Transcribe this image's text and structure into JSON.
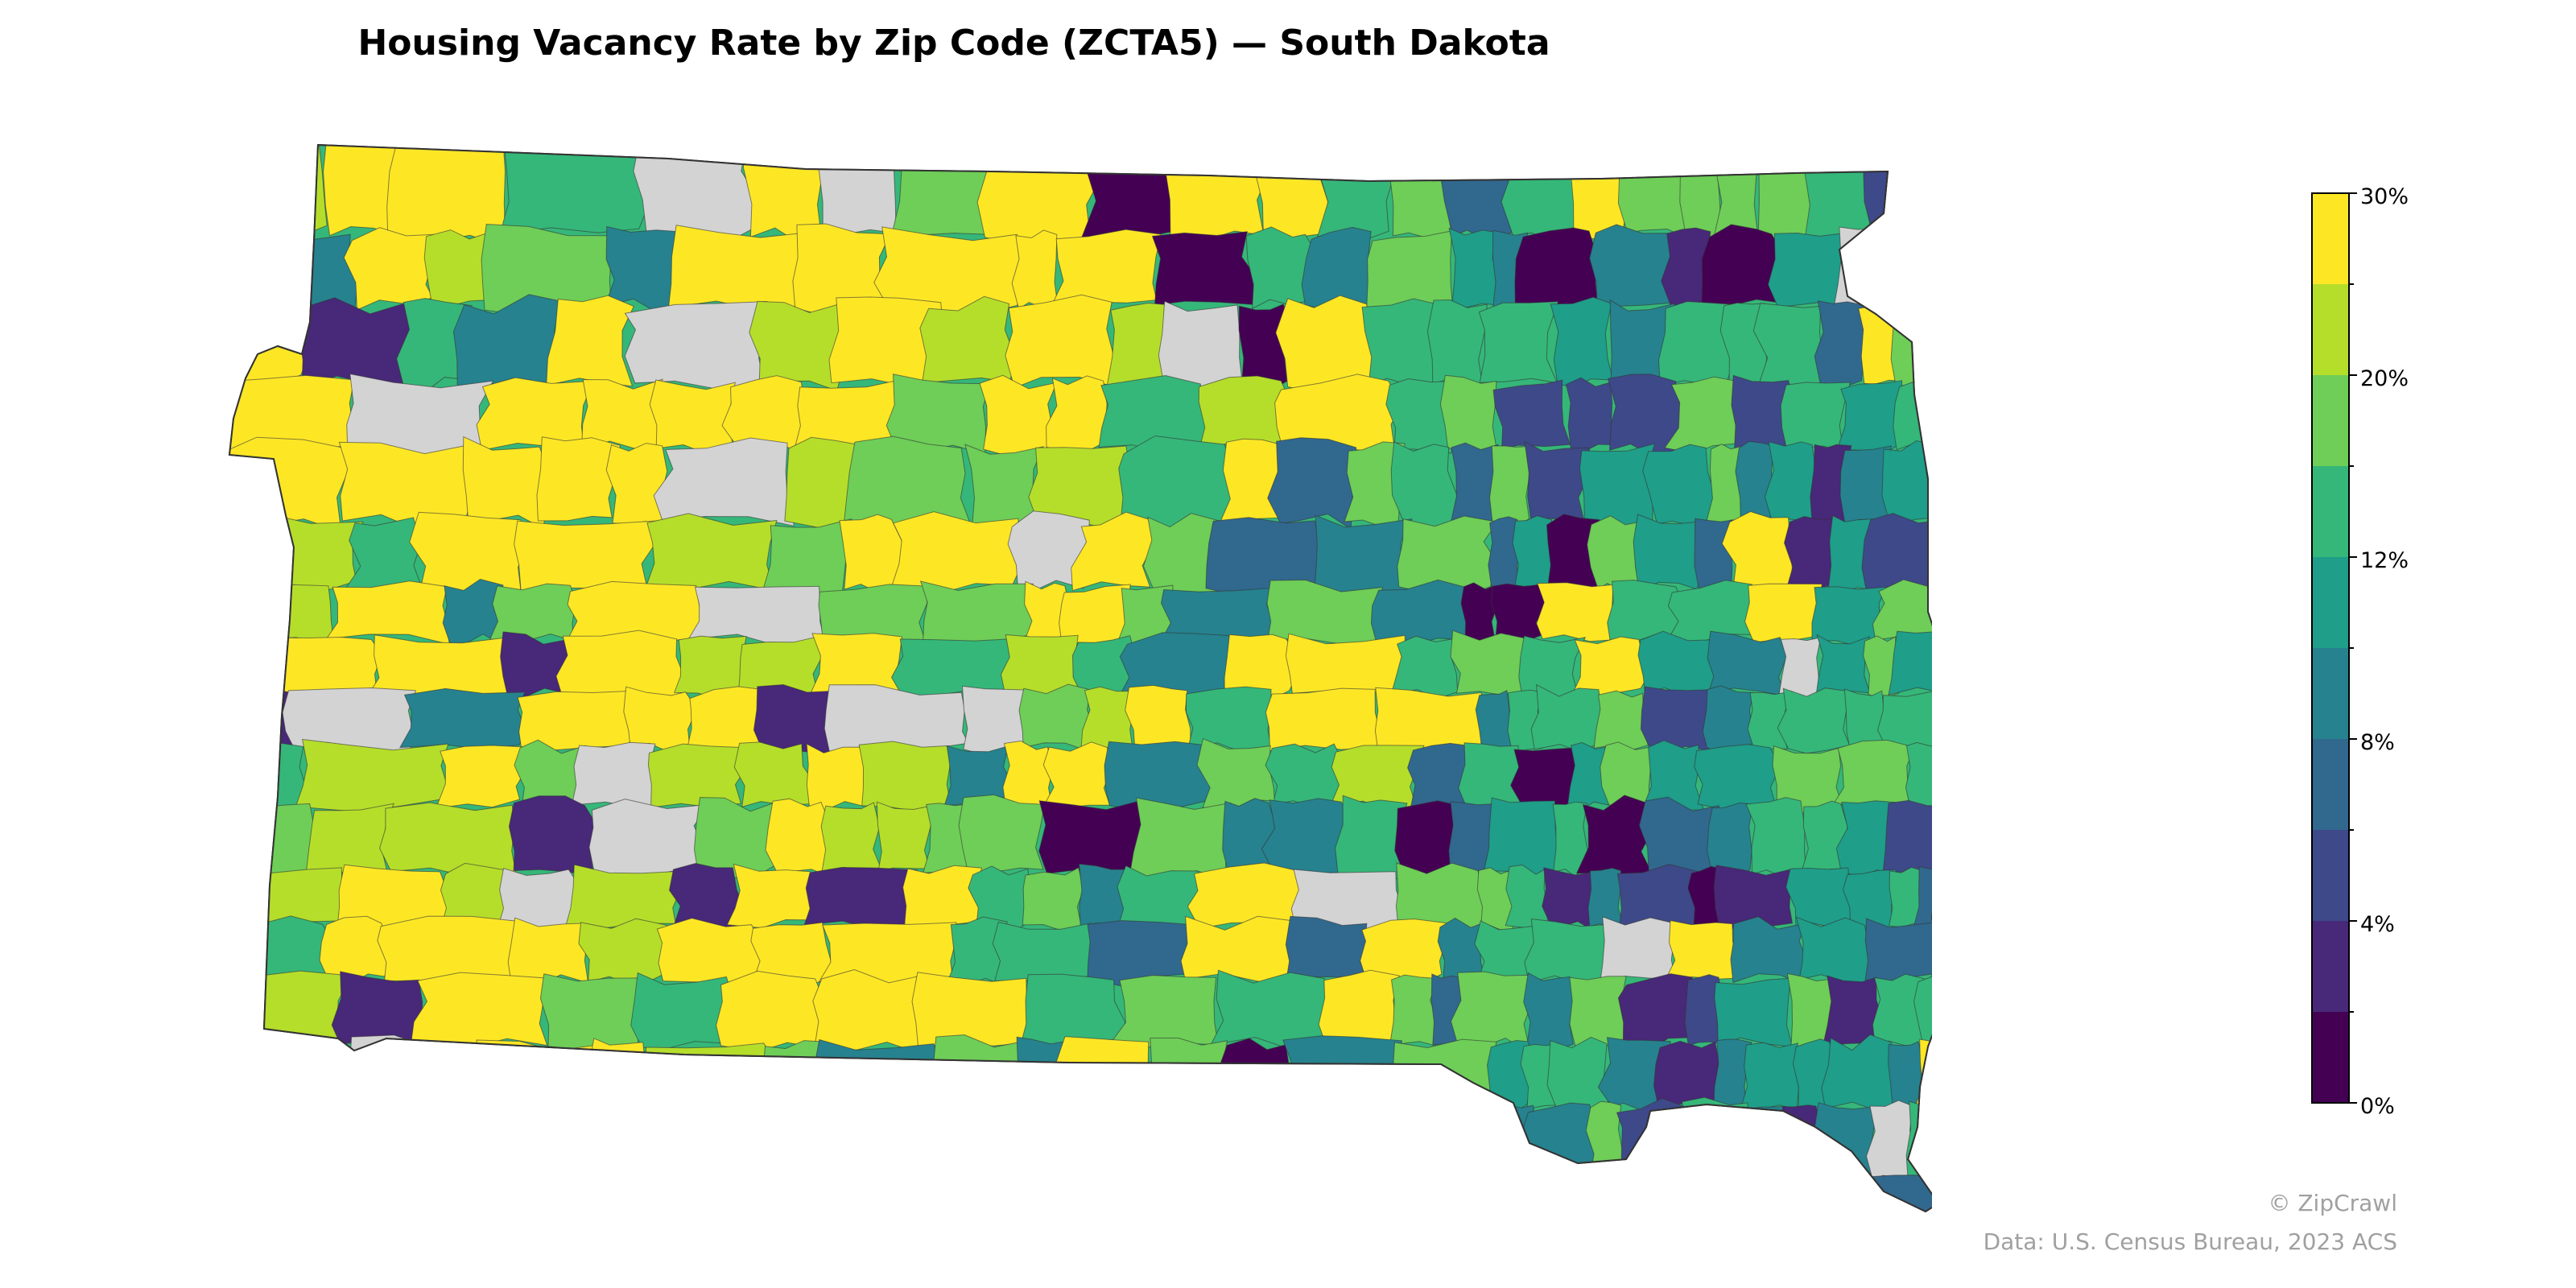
{
  "title": "Housing Vacancy Rate by Zip Code (ZCTA5) — South Dakota",
  "legend": {
    "tick_labels": [
      "30%",
      "20%",
      "12%",
      "8%",
      "4%",
      "0%"
    ],
    "colors": [
      "#fde725",
      "#b5de2b",
      "#6ece58",
      "#35b779",
      "#1f9e89",
      "#26828e",
      "#31688e",
      "#3e4989",
      "#482878",
      "#440154"
    ],
    "no_data_color": "#d3d3d3"
  },
  "map": {
    "region": "South Dakota",
    "subject": "housing vacancy rate by ZCTA5",
    "neighbor_fill": "#e8e8e8",
    "border_color": "#333333"
  },
  "footer": {
    "credit": "© ZipCrawl",
    "source": "Data: U.S. Census Bureau, 2023 ACS"
  }
}
